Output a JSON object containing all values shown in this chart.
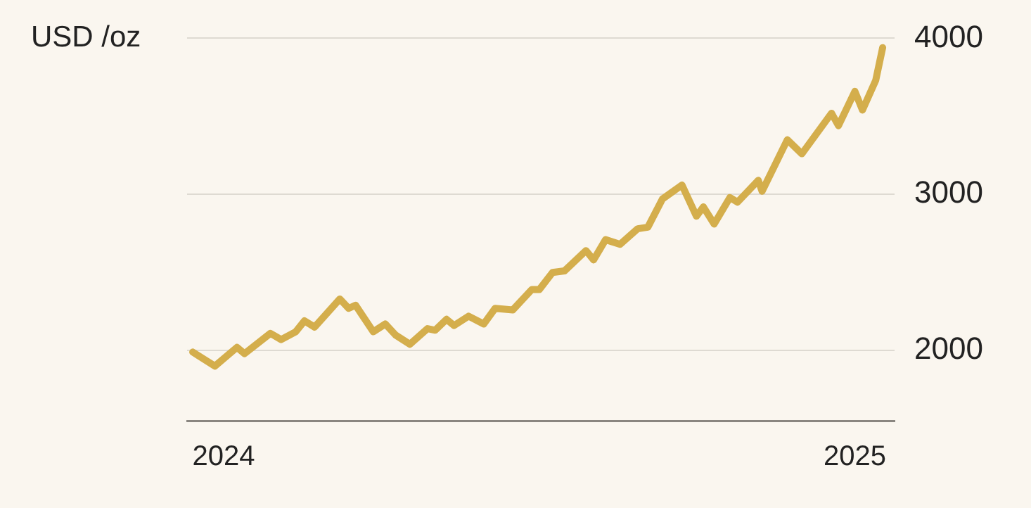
{
  "chart_data": {
    "type": "line",
    "ylabel": "USD /oz",
    "x": [
      2023.951,
      2023.986,
      2024.021,
      2024.033,
      2024.074,
      2024.091,
      2024.114,
      2024.128,
      2024.144,
      2024.184,
      2024.198,
      2024.209,
      2024.237,
      2024.256,
      2024.272,
      2024.295,
      2024.323,
      2024.335,
      2024.353,
      2024.365,
      2024.388,
      2024.412,
      2024.43,
      2024.458,
      2024.488,
      2024.5,
      2024.521,
      2024.54,
      2024.574,
      2024.586,
      2024.605,
      2024.628,
      2024.656,
      2024.672,
      2024.695,
      2024.726,
      2024.749,
      2024.76,
      2024.777,
      2024.802,
      2024.814,
      2024.847,
      2024.853,
      2024.893,
      2024.916,
      2024.963,
      2024.974,
      2025.0,
      2025.012,
      2025.033,
      2025.044
    ],
    "series": [
      {
        "color": "#d4ae4c",
        "values": [
          1990,
          1900,
          2020,
          1980,
          2110,
          2070,
          2120,
          2190,
          2150,
          2330,
          2270,
          2290,
          2120,
          2170,
          2100,
          2040,
          2140,
          2130,
          2200,
          2160,
          2220,
          2170,
          2270,
          2260,
          2390,
          2390,
          2500,
          2510,
          2640,
          2580,
          2710,
          2680,
          2780,
          2790,
          2970,
          3060,
          2860,
          2920,
          2810,
          2980,
          2950,
          3090,
          3020,
          3350,
          3260,
          3520,
          3440,
          3660,
          3540,
          3730,
          3940
        ]
      }
    ],
    "xlim": [
      2023.942,
      2025.063
    ],
    "xticks": [
      2024,
      2025
    ],
    "ylim": [
      1550,
      4000
    ],
    "yticks": [
      2000,
      3000,
      4000
    ],
    "grid": "y",
    "legend": false,
    "marker": "none",
    "line_style": "solid"
  }
}
